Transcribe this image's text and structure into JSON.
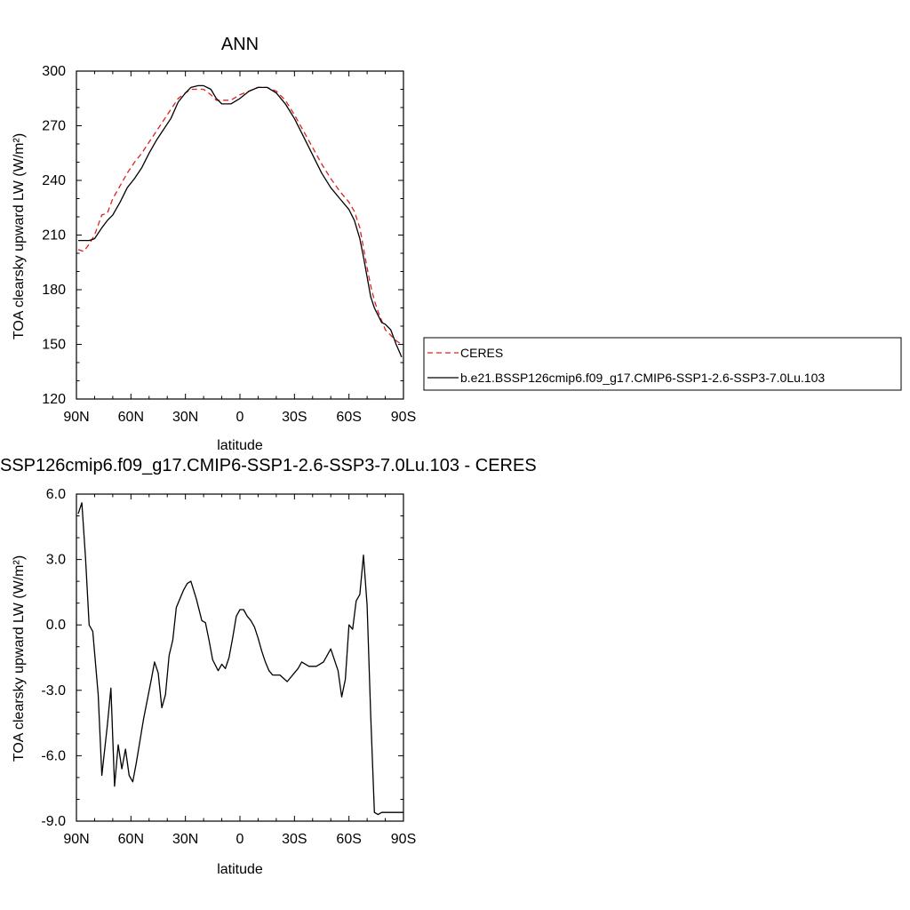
{
  "chart_data": [
    {
      "type": "line",
      "title": "ANN",
      "xlabel": "latitude",
      "ylabel": "TOA clearsky upward LW (W/m²)",
      "ylim": [
        120,
        300
      ],
      "xlim": [
        -90,
        90
      ],
      "xticks": [
        -90,
        -60,
        -30,
        0,
        30,
        60,
        90
      ],
      "xtick_labels": [
        "90N",
        "60N",
        "30N",
        "0",
        "30S",
        "60S",
        "90S"
      ],
      "yticks": [
        120,
        150,
        180,
        210,
        240,
        270,
        300
      ],
      "ytick_labels": [
        "120",
        "150",
        "180",
        "210",
        "240",
        "270",
        "300"
      ],
      "grid": false,
      "legend_position": "right",
      "series": [
        {
          "name": "CERES",
          "color": "#e02020",
          "dash": "dashed",
          "x": [
            -89,
            -86,
            -83,
            -80,
            -76,
            -73,
            -70,
            -66,
            -62,
            -58,
            -54,
            -50,
            -46,
            -42,
            -38,
            -34,
            -30,
            -27,
            -23,
            -20,
            -16,
            -13,
            -10,
            -5,
            0,
            5,
            10,
            15,
            20,
            25,
            30,
            35,
            40,
            45,
            50,
            55,
            60,
            63,
            66,
            68,
            70,
            72,
            74,
            76,
            78,
            80,
            83,
            86,
            89
          ],
          "values": [
            202,
            201,
            205,
            210,
            221,
            222,
            230,
            237,
            244,
            250,
            255,
            261,
            267,
            273,
            279,
            285,
            288,
            290,
            290,
            290,
            287,
            284,
            284,
            284,
            287,
            289,
            291,
            291,
            289,
            284,
            276,
            267,
            258,
            249,
            241,
            234,
            228,
            223,
            214,
            203,
            192,
            182,
            174,
            168,
            163,
            158,
            155,
            152,
            150
          ]
        },
        {
          "name": "b.e21.BSSP126cmip6.f09_g17.CMIP6-SSP1-2.6-SSP3-7.0Lu.103",
          "color": "#000000",
          "dash": "solid",
          "x": [
            -89,
            -86,
            -83,
            -80,
            -76,
            -73,
            -70,
            -66,
            -62,
            -58,
            -54,
            -50,
            -46,
            -42,
            -38,
            -34,
            -30,
            -27,
            -23,
            -20,
            -16,
            -13,
            -10,
            -5,
            0,
            5,
            10,
            15,
            20,
            25,
            30,
            35,
            40,
            45,
            50,
            55,
            60,
            63,
            66,
            68,
            70,
            72,
            74,
            76,
            78,
            80,
            83,
            86,
            89
          ],
          "values": [
            207,
            207,
            207,
            208,
            214,
            218,
            221,
            228,
            236,
            241,
            247,
            255,
            262,
            268,
            274,
            283,
            288,
            291,
            292,
            292,
            290,
            285,
            282,
            282,
            285,
            289,
            291,
            291,
            288,
            282,
            274,
            264,
            254,
            244,
            236,
            230,
            224,
            218,
            208,
            198,
            187,
            176,
            170,
            166,
            162,
            161,
            158,
            150,
            143
          ]
        }
      ]
    },
    {
      "type": "line",
      "title": "SSP126cmip6.f09_g17.CMIP6-SSP1-2.6-SSP3-7.0Lu.103 - CERES",
      "xlabel": "latitude",
      "ylabel": "TOA clearsky upward LW (W/m²)",
      "ylim": [
        -9.0,
        6.0
      ],
      "xlim": [
        -90,
        90
      ],
      "xticks": [
        -90,
        -60,
        -30,
        0,
        30,
        60,
        90
      ],
      "xtick_labels": [
        "90N",
        "60N",
        "30N",
        "0",
        "30S",
        "60S",
        "90S"
      ],
      "yticks": [
        -9.0,
        -6.0,
        -3.0,
        0.0,
        3.0,
        6.0
      ],
      "ytick_labels": [
        "-9.0",
        "-6.0",
        "-3.0",
        "0.0",
        "3.0",
        "6.0"
      ],
      "grid": false,
      "series": [
        {
          "color": "#000000",
          "dash": "solid",
          "x": [
            -89,
            -87,
            -85,
            -83,
            -81,
            -78,
            -76,
            -73,
            -71,
            -69,
            -67,
            -65,
            -63,
            -61,
            -59,
            -57,
            -53,
            -49,
            -47,
            -45,
            -43,
            -41,
            -39,
            -37,
            -35,
            -33,
            -31,
            -29,
            -27,
            -24,
            -21,
            -19,
            -17,
            -15,
            -12,
            -10,
            -8,
            -6,
            -4,
            -2,
            0,
            2,
            4,
            6,
            8,
            10,
            12,
            14,
            16,
            18,
            22,
            26,
            30,
            32,
            34,
            38,
            42,
            46,
            50,
            54,
            56,
            58,
            60,
            62,
            64,
            66,
            68,
            70,
            72,
            74,
            76,
            78,
            80,
            82,
            84,
            86,
            88,
            90
          ],
          "values": [
            5.1,
            5.6,
            3.1,
            0.0,
            -0.3,
            -3.2,
            -6.9,
            -4.6,
            -2.9,
            -7.4,
            -5.5,
            -6.6,
            -5.7,
            -6.9,
            -7.2,
            -6.3,
            -4.3,
            -2.6,
            -1.7,
            -2.2,
            -3.8,
            -3.2,
            -1.4,
            -0.7,
            0.8,
            1.2,
            1.6,
            1.9,
            2.0,
            1.2,
            0.2,
            0.1,
            -0.7,
            -1.6,
            -2.1,
            -1.8,
            -2.0,
            -1.5,
            -0.6,
            0.4,
            0.7,
            0.7,
            0.4,
            0.2,
            -0.1,
            -0.6,
            -1.2,
            -1.7,
            -2.1,
            -2.3,
            -2.3,
            -2.6,
            -2.2,
            -2.0,
            -1.7,
            -1.9,
            -1.9,
            -1.7,
            -1.1,
            -2.1,
            -3.3,
            -2.5,
            0.0,
            -0.2,
            1.1,
            1.4,
            3.2,
            0.9,
            -4.2,
            -8.6,
            -8.7,
            -8.6,
            -8.6,
            -8.6,
            -8.6,
            -8.6,
            -8.6,
            -8.6
          ]
        }
      ]
    }
  ]
}
